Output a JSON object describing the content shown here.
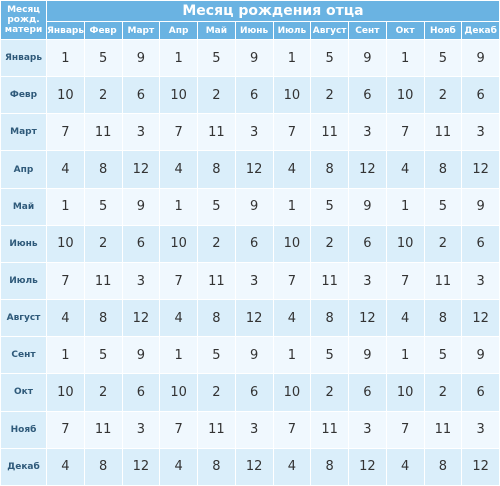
{
  "corner_label": [
    "Месяц",
    "рожд.",
    "матери"
  ],
  "title": "Месяц рождения отца",
  "father_months": [
    "Январь",
    "Февр",
    "Март",
    "Апр",
    "Май",
    "Июнь",
    "Июль",
    "Август",
    "Сент",
    "Окт",
    "Нояб",
    "Декаб"
  ],
  "rows": [
    {
      "label": "Январь",
      "values": [
        "1",
        "5",
        "9",
        "1",
        "5",
        "9",
        "1",
        "5",
        "9",
        "1",
        "5",
        "9"
      ]
    },
    {
      "label": "Февр",
      "values": [
        "10",
        "2",
        "6",
        "10",
        "2",
        "6",
        "10",
        "2",
        "6",
        "10",
        "2",
        "6"
      ]
    },
    {
      "label": "Март",
      "values": [
        "7",
        "11",
        "3",
        "7",
        "11",
        "3",
        "7",
        "11",
        "3",
        "7",
        "11",
        "3"
      ]
    },
    {
      "label": "Апр",
      "values": [
        "4",
        "8",
        "12",
        "4",
        "8",
        "12",
        "4",
        "8",
        "12",
        "4",
        "8",
        "12"
      ]
    },
    {
      "label": "Май",
      "values": [
        "1",
        "5",
        "9",
        "1",
        "5",
        "9",
        "1",
        "5",
        "9",
        "1",
        "5",
        "9"
      ]
    },
    {
      "label": "Июнь",
      "values": [
        "10",
        "2",
        "6",
        "10",
        "2",
        "6",
        "10",
        "2",
        "6",
        "10",
        "2",
        "6"
      ]
    },
    {
      "label": "Июль",
      "values": [
        "7",
        "11",
        "3",
        "7",
        "11",
        "3",
        "7",
        "11",
        "3",
        "7",
        "11",
        "3"
      ]
    },
    {
      "label": "Август",
      "values": [
        "4",
        "8",
        "12",
        "4",
        "8",
        "12",
        "4",
        "8",
        "12",
        "4",
        "8",
        "12"
      ]
    },
    {
      "label": "Сент",
      "values": [
        "1",
        "5",
        "9",
        "1",
        "5",
        "9",
        "1",
        "5",
        "9",
        "1",
        "5",
        "9"
      ]
    },
    {
      "label": "Окт",
      "values": [
        "10",
        "2",
        "6",
        "10",
        "2",
        "6",
        "10",
        "2",
        "6",
        "10",
        "2",
        "6"
      ]
    },
    {
      "label": "Нояб",
      "values": [
        "7",
        "11",
        "3",
        "7",
        "11",
        "3",
        "7",
        "11",
        "3",
        "7",
        "11",
        "3"
      ]
    },
    {
      "label": "Декаб",
      "values": [
        "4",
        "8",
        "12",
        "4",
        "8",
        "12",
        "4",
        "8",
        "12",
        "4",
        "8",
        "12"
      ]
    }
  ],
  "colors": {
    "header_bg": "#6ab3e2",
    "row_light": "#f0f8fe",
    "row_dark": "#daeefa"
  }
}
